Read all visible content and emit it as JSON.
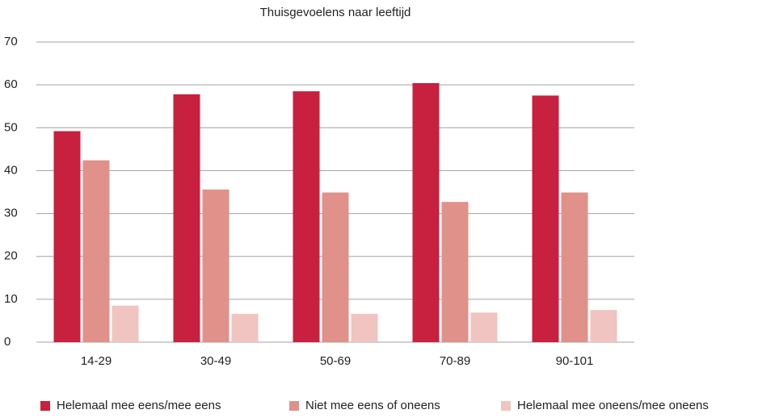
{
  "chart_data": {
    "type": "bar",
    "title": "Thuisgevoelens naar leeftijd",
    "categories": [
      "14-29",
      "30-49",
      "50-69",
      "70-89",
      "90-101"
    ],
    "series": [
      {
        "name": "Helemaal mee eens/mee eens",
        "color": "#c8203f",
        "values": [
          49.2,
          57.8,
          58.5,
          60.4,
          57.5
        ]
      },
      {
        "name": "Niet mee eens of oneens",
        "color": "#e0918a",
        "values": [
          42.4,
          35.6,
          34.9,
          32.7,
          34.9
        ]
      },
      {
        "name": "Helemaal mee oneens/mee oneens",
        "color": "#f0c4c0",
        "values": [
          8.5,
          6.6,
          6.6,
          6.9,
          7.5
        ]
      }
    ],
    "ylim": [
      0,
      70
    ],
    "yticks": [
      0,
      10,
      20,
      30,
      40,
      50,
      60,
      70
    ],
    "grid": true,
    "legend": "bottom"
  }
}
